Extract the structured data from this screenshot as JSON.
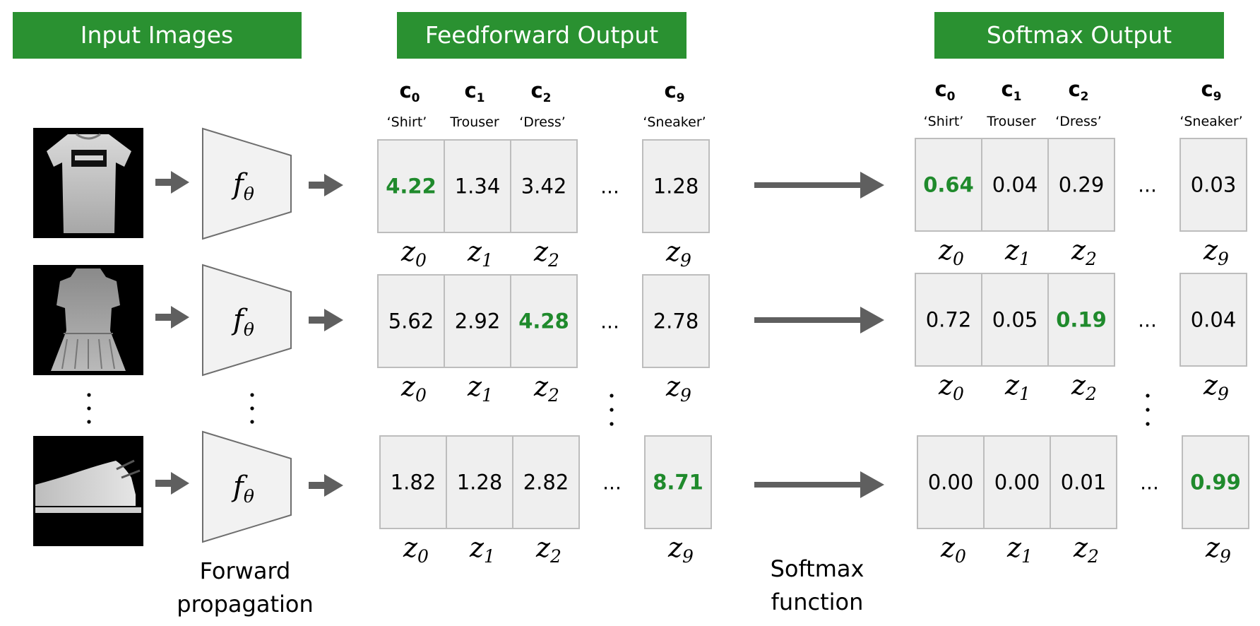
{
  "headers": {
    "input": "Input Images",
    "feedforward": "Feedforward Output",
    "softmax": "Softmax Output"
  },
  "classes": {
    "c0": {
      "letter": "c",
      "index": "0",
      "name": "‘Shirt’"
    },
    "c1": {
      "letter": "c",
      "index": "1",
      "name": "Trouser"
    },
    "c2": {
      "letter": "c",
      "index": "2",
      "name": "‘Dress’"
    },
    "c9": {
      "letter": "c",
      "index": "9",
      "name": "‘Sneaker’"
    }
  },
  "network": {
    "symbol": "f",
    "subscript": "θ"
  },
  "feedforward_rows": [
    [
      "4.22",
      "1.34",
      "3.42",
      "1.28"
    ],
    [
      "5.62",
      "2.92",
      "4.28",
      "2.78"
    ],
    [
      "1.82",
      "1.28",
      "2.82",
      "8.71"
    ]
  ],
  "softmax_rows": [
    [
      "0.64",
      "0.04",
      "0.29",
      "0.03"
    ],
    [
      "0.72",
      "0.05",
      "0.19",
      "0.04"
    ],
    [
      "0.00",
      "0.00",
      "0.01",
      "0.99"
    ]
  ],
  "highlight_index": [
    0,
    2,
    3
  ],
  "z_labels": {
    "letter": "z",
    "subs": [
      "0",
      "1",
      "2",
      "9"
    ]
  },
  "ellipsis": "...",
  "captions": {
    "forward_line1": "Forward",
    "forward_line2": "propagation",
    "softmax_line1": "Softmax",
    "softmax_line2": "function"
  },
  "images": [
    {
      "label": "shirt-image"
    },
    {
      "label": "dress-image"
    },
    {
      "label": "sneaker-image"
    }
  ],
  "colors": {
    "header_green": "#2a9131",
    "highlight_green": "#1f8a2c",
    "arrow_gray": "#5f5f5f"
  }
}
